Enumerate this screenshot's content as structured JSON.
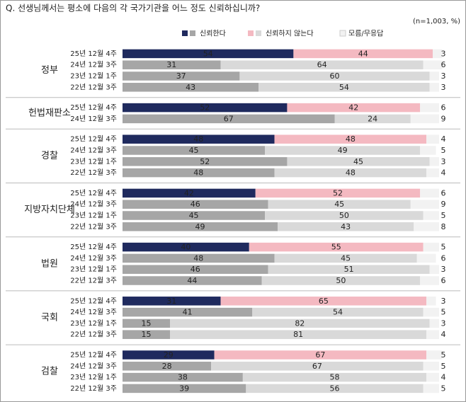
{
  "chart_data": {
    "type": "bar",
    "orientation": "horizontal",
    "stacked": true,
    "title": "Q. 선생님께서는 평소에 다음의 각 국가기관을 어느 정도 신뢰하십니까?",
    "note": "(n=1,003, %)",
    "series": [
      {
        "name": "신뢰한다",
        "color": "#1f2a5e",
        "past_color": "#a6a6a6"
      },
      {
        "name": "신뢰하지 않는다",
        "color": "#f4b9c1",
        "past_color": "#d9d9d9"
      },
      {
        "name": "모름/무응답",
        "color": "#f2f2f2",
        "past_color": "#f2f2f2"
      }
    ],
    "groups": [
      {
        "name": "정부",
        "categories": [
          "25년 12월 4주",
          "24년 12월 3주",
          "23년 12월 1주",
          "22년 12월 3주"
        ],
        "values": [
          [
            54,
            44,
            3
          ],
          [
            31,
            64,
            6
          ],
          [
            37,
            60,
            3
          ],
          [
            43,
            54,
            3
          ]
        ]
      },
      {
        "name": "헌법재판소",
        "categories": [
          "25년 12월 4주",
          "24년 12월 3주"
        ],
        "values": [
          [
            52,
            42,
            6
          ],
          [
            67,
            24,
            9
          ]
        ]
      },
      {
        "name": "경찰",
        "categories": [
          "25년 12월 4주",
          "24년 12월 3주",
          "23년 12월 1주",
          "22년 12월 3주"
        ],
        "values": [
          [
            48,
            48,
            4
          ],
          [
            45,
            49,
            5
          ],
          [
            52,
            45,
            3
          ],
          [
            48,
            48,
            4
          ]
        ]
      },
      {
        "name": "지방자치단체",
        "categories": [
          "25년 12월 4주",
          "24년 12월 3주",
          "23년 12월 1주",
          "22년 12월 3주"
        ],
        "values": [
          [
            42,
            52,
            6
          ],
          [
            46,
            45,
            9
          ],
          [
            45,
            50,
            5
          ],
          [
            49,
            43,
            8
          ]
        ]
      },
      {
        "name": "법원",
        "categories": [
          "25년 12월 4주",
          "24년 12월 3주",
          "23년 12월 1주",
          "22년 12월 3주"
        ],
        "values": [
          [
            40,
            55,
            5
          ],
          [
            48,
            45,
            6
          ],
          [
            46,
            51,
            3
          ],
          [
            44,
            50,
            6
          ]
        ]
      },
      {
        "name": "국회",
        "categories": [
          "25년 12월 4주",
          "24년 12월 3주",
          "23년 12월 1주",
          "22년 12월 3주"
        ],
        "values": [
          [
            31,
            65,
            3
          ],
          [
            41,
            54,
            5
          ],
          [
            15,
            82,
            3
          ],
          [
            15,
            81,
            4
          ]
        ]
      },
      {
        "name": "검찰",
        "categories": [
          "25년 12월 4주",
          "24년 12월 3주",
          "23년 12월 1주",
          "22년 12월 3주"
        ],
        "values": [
          [
            29,
            67,
            5
          ],
          [
            28,
            67,
            5
          ],
          [
            38,
            58,
            4
          ],
          [
            39,
            56,
            5
          ]
        ]
      }
    ]
  }
}
